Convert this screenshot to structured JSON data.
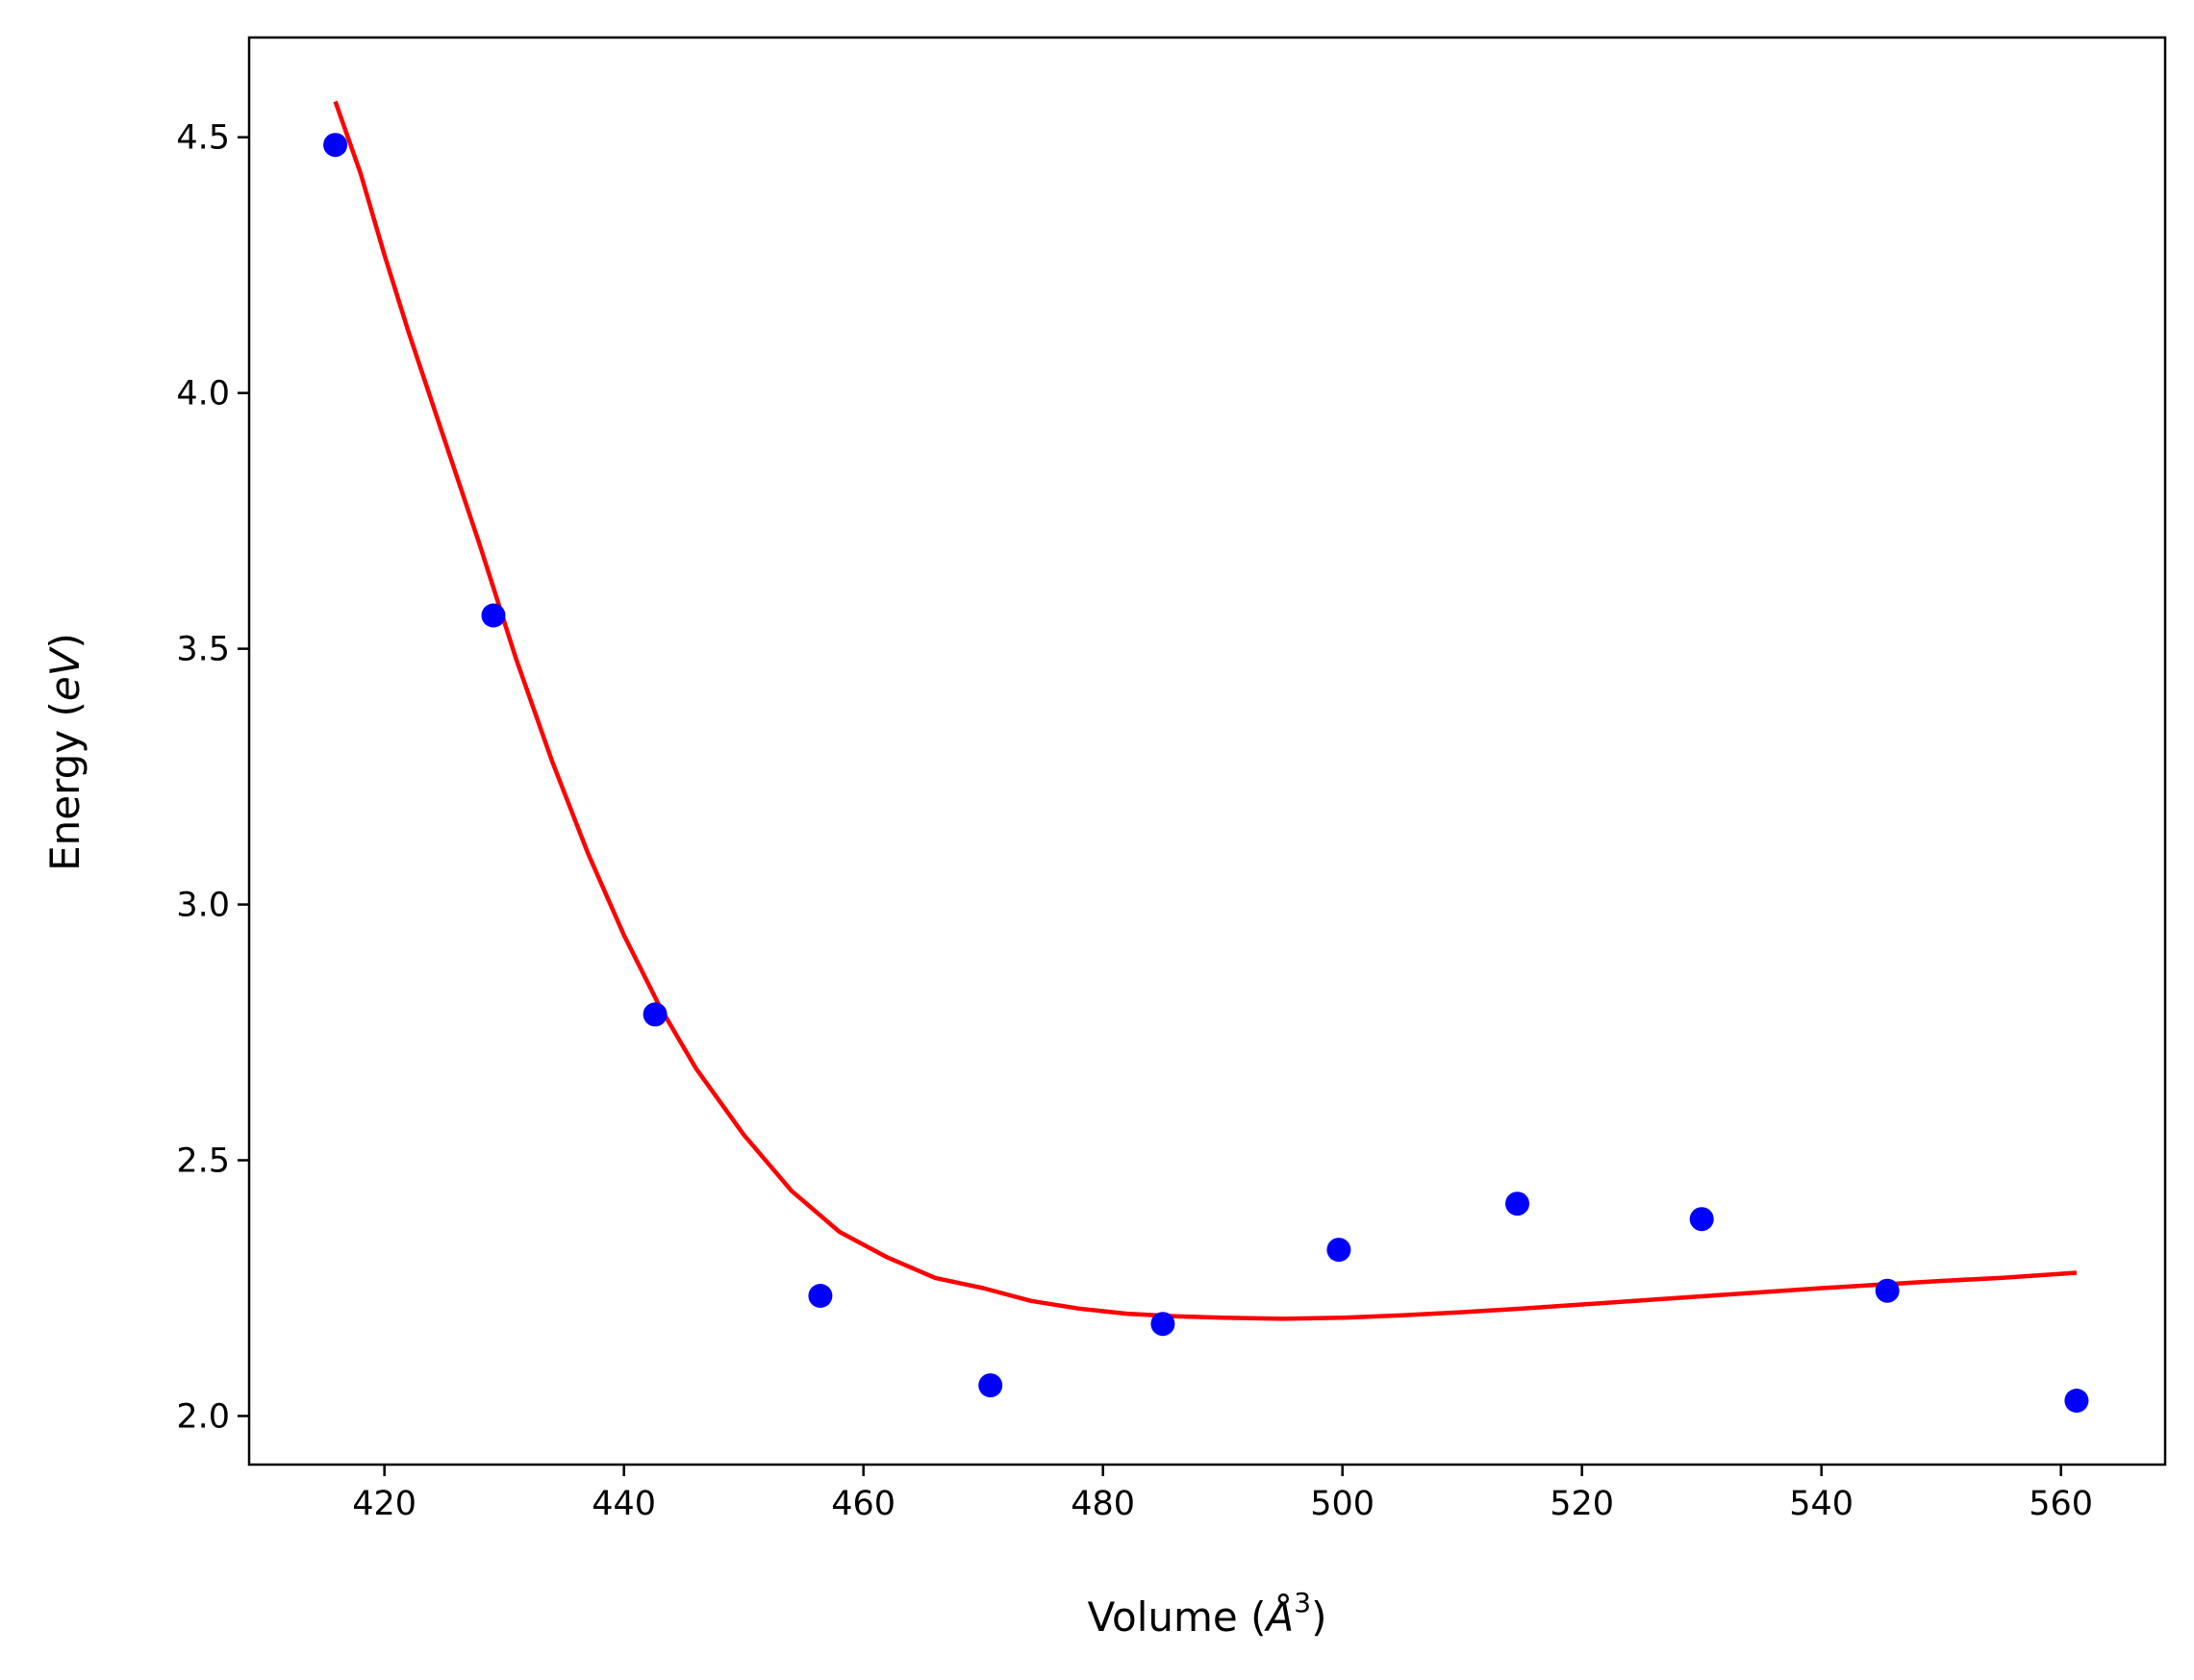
{
  "chart_data": {
    "type": "scatter",
    "title": "",
    "xlabel": "Volume (",
    "xlabel_unit": "Å",
    "xlabel_exp": "3",
    "xlabel_close": ")",
    "ylabel": "Energy (",
    "ylabel_unit": "eV",
    "ylabel_close": ")",
    "xlim": [
      408.7,
      568.7
    ],
    "ylim": [
      1.905,
      4.695
    ],
    "xticks": [
      420,
      440,
      460,
      480,
      500,
      520,
      540,
      560
    ],
    "yticks": [
      2.0,
      2.5,
      3.0,
      3.5,
      4.0,
      4.5
    ],
    "ytick_labels": [
      "2.0",
      "2.5",
      "3.0",
      "3.5",
      "4.0",
      "4.5"
    ],
    "grid": false,
    "series": [
      {
        "kind": "points",
        "color": "#0000ff",
        "x": [
          415.9,
          429.1,
          442.6,
          456.4,
          470.6,
          485.0,
          499.7,
          514.6,
          530.0,
          545.5,
          561.3
        ],
        "y": [
          4.485,
          3.565,
          2.785,
          2.235,
          2.06,
          2.18,
          2.325,
          2.415,
          2.385,
          2.245,
          2.03
        ]
      },
      {
        "kind": "fit-line",
        "color": "#ff0000",
        "x": [
          415.9,
          418,
          420,
          422,
          425,
          428,
          431,
          434,
          437,
          440,
          443,
          446,
          450,
          454,
          458,
          462,
          466,
          470,
          474,
          478,
          482,
          486,
          490,
          495,
          500,
          505,
          510,
          515,
          520,
          525,
          530,
          535,
          540,
          545,
          550,
          555,
          561.3
        ],
        "y": [
          4.57,
          4.43,
          4.27,
          4.12,
          3.91,
          3.7,
          3.48,
          3.28,
          3.1,
          2.94,
          2.8,
          2.68,
          2.55,
          2.44,
          2.36,
          2.31,
          2.27,
          2.25,
          2.225,
          2.21,
          2.2,
          2.195,
          2.192,
          2.19,
          2.192,
          2.197,
          2.203,
          2.21,
          2.218,
          2.226,
          2.234,
          2.242,
          2.25,
          2.257,
          2.264,
          2.27,
          2.28
        ]
      }
    ]
  }
}
